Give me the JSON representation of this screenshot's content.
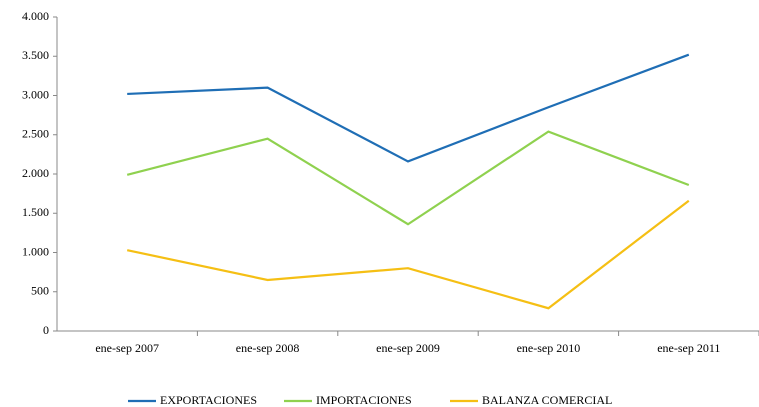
{
  "chart_data": {
    "type": "line",
    "categories": [
      "ene-sep 2007",
      "ene-sep 2008",
      "ene-sep 2009",
      "ene-sep 2010",
      "ene-sep 2011"
    ],
    "series": [
      {
        "name": "EXPORTACIONES",
        "color": "#1f6eb5",
        "values": [
          3020,
          3100,
          2160,
          2850,
          3520
        ]
      },
      {
        "name": "IMPORTACIONES",
        "color": "#8fd14f",
        "values": [
          1990,
          2450,
          1360,
          2540,
          1860
        ]
      },
      {
        "name": "BALANZA COMERCIAL",
        "color": "#f5bf14",
        "values": [
          1030,
          650,
          800,
          290,
          1660
        ]
      }
    ],
    "ylim": [
      0,
      4000
    ],
    "yticks": [
      0,
      500,
      {
        "value": 1000,
        "label": "1.000"
      },
      {
        "value": 1500,
        "label": "1.500"
      },
      {
        "value": 2000,
        "label": "2.000"
      },
      {
        "value": 2500,
        "label": "2.500"
      },
      {
        "value": 3000,
        "label": "3.000"
      },
      {
        "value": 3500,
        "label": "3.500"
      },
      {
        "value": 4000,
        "label": "4.000"
      }
    ],
    "grid": false,
    "legend": "bottom"
  }
}
